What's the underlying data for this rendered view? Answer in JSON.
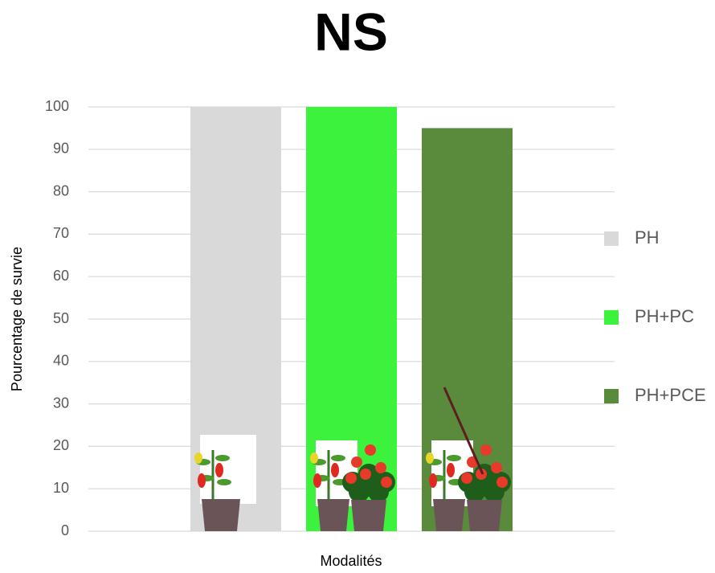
{
  "chart_data": {
    "type": "bar",
    "title": "NS",
    "y_label": "Pourcentage de survie",
    "x_label": "Modalités",
    "categories": [
      null
    ],
    "series": [
      {
        "name": "PH",
        "color": "#d9d9d9",
        "values": [
          100
        ]
      },
      {
        "name": "PH+PC",
        "color": "#3df23d",
        "values": [
          100
        ]
      },
      {
        "name": "PH+PCE",
        "color": "#5a8a3c",
        "values": [
          95
        ]
      }
    ],
    "ylim": [
      0,
      100
    ],
    "yticks": [
      0,
      10,
      20,
      30,
      40,
      50,
      60,
      70,
      80,
      90,
      100
    ],
    "grid": true,
    "legend": "right"
  }
}
